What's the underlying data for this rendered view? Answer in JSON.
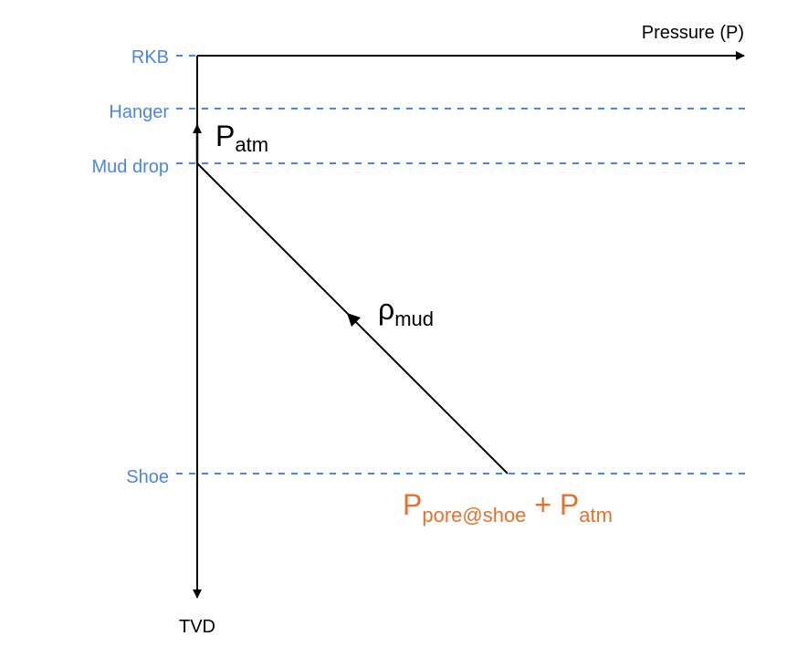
{
  "axes": {
    "x_label": "Pressure (P)",
    "y_label": "TVD"
  },
  "levels": {
    "rkb": "RKB",
    "hanger": "Hanger",
    "mud_drop": "Mud drop",
    "shoe": "Shoe"
  },
  "annotations": {
    "atm": {
      "main": "P",
      "sub": "atm"
    },
    "mud": {
      "main": "ρ",
      "sub": "mud"
    },
    "shoe_pressure": {
      "p1_main": "P",
      "p1_sub": "pore@shoe",
      "plus": " + ",
      "p2_main": "P",
      "p2_sub": "atm"
    }
  },
  "colors": {
    "level": "#4a86e8",
    "accent": "#e8702a",
    "ink": "#000000"
  }
}
